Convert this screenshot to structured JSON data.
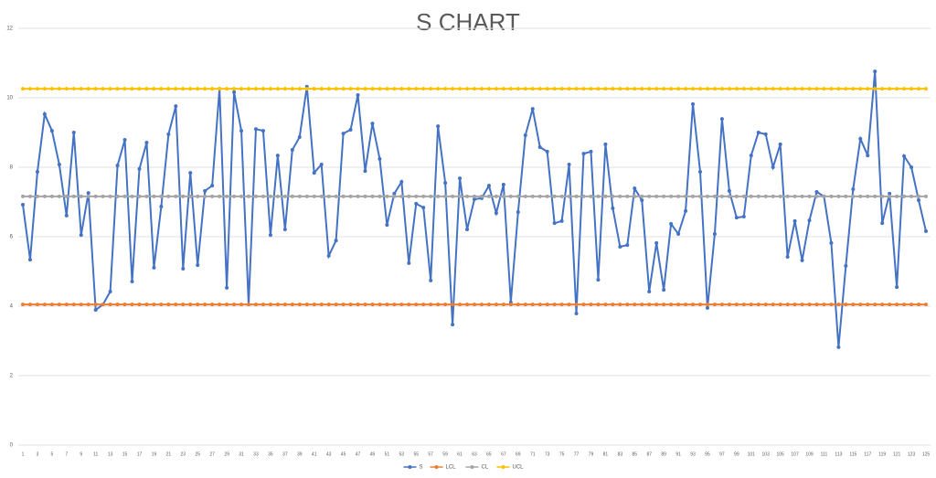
{
  "chart_data": {
    "type": "line",
    "title": "S CHART",
    "categories": [
      1,
      null,
      3,
      null,
      5,
      null,
      7,
      null,
      9,
      null,
      11,
      null,
      13,
      null,
      15,
      null,
      17,
      null,
      19,
      null,
      21,
      null,
      23,
      null,
      25,
      null,
      27,
      null,
      29,
      null,
      31,
      null,
      33,
      null,
      35,
      null,
      37,
      null,
      39,
      null,
      41,
      null,
      43,
      null,
      45,
      null,
      47,
      null,
      49,
      null,
      51,
      null,
      53,
      null,
      55,
      null,
      57,
      null,
      59,
      null,
      61,
      null,
      63,
      null,
      65,
      null,
      67,
      null,
      69,
      null,
      71,
      null,
      73,
      null,
      75,
      null,
      77,
      null,
      79,
      null,
      81,
      null,
      83,
      null,
      85,
      null,
      87,
      null,
      89,
      null,
      91,
      null,
      93,
      null,
      95,
      null,
      97,
      null,
      99,
      null,
      101,
      null,
      103,
      null,
      105,
      null,
      107,
      null,
      109,
      null,
      111,
      null,
      113,
      null,
      115,
      null,
      117,
      null,
      119,
      null,
      121,
      null,
      123,
      null,
      125
    ],
    "series": [
      {
        "name": "S",
        "color": "#4472c4",
        "values": [
          6.92,
          5.34,
          7.87,
          9.53,
          9.05,
          8.08,
          6.61,
          9.0,
          6.05,
          7.26,
          3.89,
          4.05,
          4.42,
          8.05,
          8.79,
          4.71,
          7.95,
          8.71,
          5.11,
          6.87,
          8.95,
          9.76,
          5.08,
          7.84,
          5.18,
          7.32,
          7.47,
          10.26,
          4.53,
          10.16,
          9.05,
          4.05,
          9.1,
          9.05,
          6.05,
          8.34,
          6.21,
          8.5,
          8.87,
          10.32,
          7.84,
          8.08,
          5.45,
          5.89,
          8.97,
          9.08,
          10.08,
          7.89,
          9.26,
          8.24,
          6.34,
          7.24,
          7.58,
          5.24,
          6.95,
          6.84,
          4.74,
          9.18,
          7.55,
          3.47,
          7.68,
          6.21,
          7.08,
          7.11,
          7.47,
          6.68,
          7.5,
          4.11,
          6.71,
          8.92,
          9.68,
          8.58,
          8.45,
          6.39,
          6.45,
          8.08,
          3.79,
          8.39,
          8.45,
          4.76,
          8.66,
          6.82,
          5.71,
          5.76,
          7.39,
          7.05,
          4.42,
          5.82,
          4.47,
          6.37,
          6.08,
          6.74,
          9.82,
          7.87,
          3.95,
          6.08,
          9.39,
          7.32,
          6.55,
          6.58,
          8.34,
          9.0,
          8.95,
          8.0,
          8.66,
          5.42,
          6.45,
          5.32,
          6.47,
          7.29,
          7.16,
          5.82,
          2.82,
          5.16,
          7.37,
          8.82,
          8.34,
          10.76,
          6.39,
          7.24,
          4.55,
          8.32,
          8.0,
          7.05,
          6.16
        ]
      },
      {
        "name": "LCL",
        "color": "#ed7d31",
        "values": [
          4.05,
          4.05,
          4.05,
          4.05,
          4.05,
          4.05,
          4.05,
          4.05,
          4.05,
          4.05,
          4.05,
          4.05,
          4.05,
          4.05,
          4.05,
          4.05,
          4.05,
          4.05,
          4.05,
          4.05,
          4.05,
          4.05,
          4.05,
          4.05,
          4.05,
          4.05,
          4.05,
          4.05,
          4.05,
          4.05,
          4.05,
          4.05,
          4.05,
          4.05,
          4.05,
          4.05,
          4.05,
          4.05,
          4.05,
          4.05,
          4.05,
          4.05,
          4.05,
          4.05,
          4.05,
          4.05,
          4.05,
          4.05,
          4.05,
          4.05,
          4.05,
          4.05,
          4.05,
          4.05,
          4.05,
          4.05,
          4.05,
          4.05,
          4.05,
          4.05,
          4.05,
          4.05,
          4.05,
          4.05,
          4.05,
          4.05,
          4.05,
          4.05,
          4.05,
          4.05,
          4.05,
          4.05,
          4.05,
          4.05,
          4.05,
          4.05,
          4.05,
          4.05,
          4.05,
          4.05,
          4.05,
          4.05,
          4.05,
          4.05,
          4.05,
          4.05,
          4.05,
          4.05,
          4.05,
          4.05,
          4.05,
          4.05,
          4.05,
          4.05,
          4.05,
          4.05,
          4.05,
          4.05,
          4.05,
          4.05,
          4.05,
          4.05,
          4.05,
          4.05,
          4.05,
          4.05,
          4.05,
          4.05,
          4.05,
          4.05,
          4.05,
          4.05,
          4.05,
          4.05,
          4.05,
          4.05,
          4.05,
          4.05,
          4.05,
          4.05,
          4.05,
          4.05,
          4.05,
          4.05,
          4.05
        ]
      },
      {
        "name": "CL",
        "color": "#a5a5a5",
        "values": [
          7.16,
          7.16,
          7.16,
          7.16,
          7.16,
          7.16,
          7.16,
          7.16,
          7.16,
          7.16,
          7.16,
          7.16,
          7.16,
          7.16,
          7.16,
          7.16,
          7.16,
          7.16,
          7.16,
          7.16,
          7.16,
          7.16,
          7.16,
          7.16,
          7.16,
          7.16,
          7.16,
          7.16,
          7.16,
          7.16,
          7.16,
          7.16,
          7.16,
          7.16,
          7.16,
          7.16,
          7.16,
          7.16,
          7.16,
          7.16,
          7.16,
          7.16,
          7.16,
          7.16,
          7.16,
          7.16,
          7.16,
          7.16,
          7.16,
          7.16,
          7.16,
          7.16,
          7.16,
          7.16,
          7.16,
          7.16,
          7.16,
          7.16,
          7.16,
          7.16,
          7.16,
          7.16,
          7.16,
          7.16,
          7.16,
          7.16,
          7.16,
          7.16,
          7.16,
          7.16,
          7.16,
          7.16,
          7.16,
          7.16,
          7.16,
          7.16,
          7.16,
          7.16,
          7.16,
          7.16,
          7.16,
          7.16,
          7.16,
          7.16,
          7.16,
          7.16,
          7.16,
          7.16,
          7.16,
          7.16,
          7.16,
          7.16,
          7.16,
          7.16,
          7.16,
          7.16,
          7.16,
          7.16,
          7.16,
          7.16,
          7.16,
          7.16,
          7.16,
          7.16,
          7.16,
          7.16,
          7.16,
          7.16,
          7.16,
          7.16,
          7.16,
          7.16,
          7.16,
          7.16,
          7.16,
          7.16,
          7.16,
          7.16,
          7.16,
          7.16,
          7.16,
          7.16,
          7.16,
          7.16,
          7.16
        ]
      },
      {
        "name": "UCL",
        "color": "#ffc000",
        "values": [
          10.26,
          10.26,
          10.26,
          10.26,
          10.26,
          10.26,
          10.26,
          10.26,
          10.26,
          10.26,
          10.26,
          10.26,
          10.26,
          10.26,
          10.26,
          10.26,
          10.26,
          10.26,
          10.26,
          10.26,
          10.26,
          10.26,
          10.26,
          10.26,
          10.26,
          10.26,
          10.26,
          10.26,
          10.26,
          10.26,
          10.26,
          10.26,
          10.26,
          10.26,
          10.26,
          10.26,
          10.26,
          10.26,
          10.26,
          10.26,
          10.26,
          10.26,
          10.26,
          10.26,
          10.26,
          10.26,
          10.26,
          10.26,
          10.26,
          10.26,
          10.26,
          10.26,
          10.26,
          10.26,
          10.26,
          10.26,
          10.26,
          10.26,
          10.26,
          10.26,
          10.26,
          10.26,
          10.26,
          10.26,
          10.26,
          10.26,
          10.26,
          10.26,
          10.26,
          10.26,
          10.26,
          10.26,
          10.26,
          10.26,
          10.26,
          10.26,
          10.26,
          10.26,
          10.26,
          10.26,
          10.26,
          10.26,
          10.26,
          10.26,
          10.26,
          10.26,
          10.26,
          10.26,
          10.26,
          10.26,
          10.26,
          10.26,
          10.26,
          10.26,
          10.26,
          10.26,
          10.26,
          10.26,
          10.26,
          10.26,
          10.26,
          10.26,
          10.26,
          10.26,
          10.26,
          10.26,
          10.26,
          10.26,
          10.26,
          10.26,
          10.26,
          10.26,
          10.26,
          10.26,
          10.26,
          10.26,
          10.26,
          10.26,
          10.26,
          10.26,
          10.26,
          10.26,
          10.26,
          10.26,
          10.26
        ]
      }
    ],
    "ylim": [
      0,
      12
    ],
    "yticks": [
      0,
      2,
      4,
      6,
      8,
      10,
      12
    ],
    "grid": true,
    "legend": "bottom"
  }
}
